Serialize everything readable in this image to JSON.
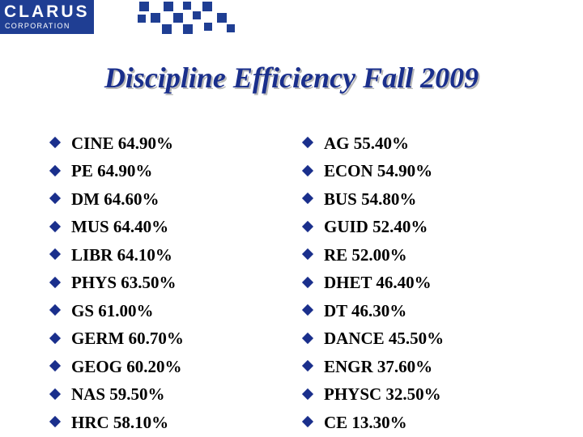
{
  "logo": {
    "word": "CLARUS",
    "sub": "CORPORATION"
  },
  "title": "Discipline Efficiency Fall 2009",
  "left_items": [
    "CINE 64.90%",
    "PE 64.90%",
    "DM 64.60%",
    "MUS 64.40%",
    "LIBR 64.10%",
    "PHYS 63.50%",
    "GS 61.00%",
    "GERM 60.70%",
    "GEOG 60.20%",
    "NAS 59.50%",
    "HRC 58.10%"
  ],
  "right_items": [
    "AG 55.40%",
    "ECON 54.90%",
    "BUS 54.80%",
    "GUID 52.40%",
    "RE 52.00%",
    "DHET 46.40%",
    "DT 46.30%",
    "DANCE 45.50%",
    "ENGR 37.60%",
    "PHYSC 32.50%",
    "CE 13.30%"
  ],
  "colors": {
    "brand_blue": "#1f3e93",
    "title_blue": "#1a2f8c",
    "text": "#000000"
  },
  "icons": {
    "bullet": "diamond-bullet-icon"
  }
}
